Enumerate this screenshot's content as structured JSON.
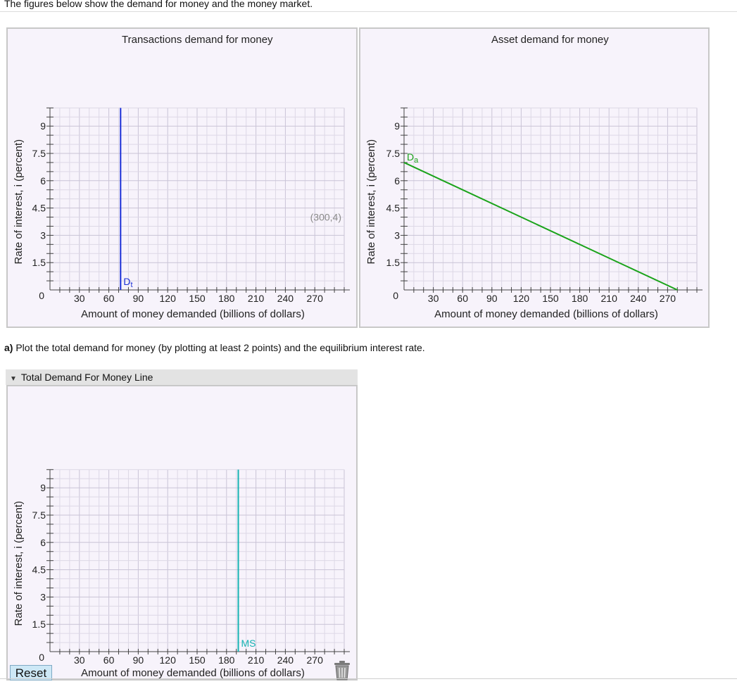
{
  "intro_text": "The figures below show the demand for money and the money market.",
  "question": {
    "prefix": "a)",
    "text": " Plot the total demand for money (by plotting at least 2 points) and the equilibrium interest rate."
  },
  "section": {
    "label": "Total Demand For Money Line"
  },
  "reset_label": "Reset",
  "icons": {
    "collapse": "caret-down-icon",
    "trash": "trash-can-icon"
  },
  "colors": {
    "dt_line": "#1a2fd6",
    "da_line": "#1aa31a",
    "ms_line": "#16b3b3",
    "panel_bg": "#f7f3fb"
  },
  "chart_data": [
    {
      "type": "line",
      "title": "Transactions demand for money",
      "xlabel": "Amount of money demanded (billions of dollars)",
      "ylabel": "Rate of interest, i (percent)",
      "xlim": [
        0,
        300
      ],
      "ylim": [
        0,
        10
      ],
      "x_ticks": [
        30,
        60,
        90,
        120,
        150,
        180,
        210,
        240,
        270
      ],
      "y_ticks": [
        1.5,
        3,
        4.5,
        6,
        7.5,
        9
      ],
      "origin_label": "0",
      "grid": true,
      "annotation": "(300,4)",
      "series": [
        {
          "name": "Dt",
          "points": [
            [
              72,
              0
            ],
            [
              72,
              10
            ]
          ],
          "color": "#1a2fd6"
        }
      ]
    },
    {
      "type": "line",
      "title": "Asset demand for money",
      "xlabel": "Amount of money demanded (billions of dollars)",
      "ylabel": "Rate of interest, i (percent)",
      "xlim": [
        0,
        300
      ],
      "ylim": [
        0,
        10
      ],
      "x_ticks": [
        30,
        60,
        90,
        120,
        150,
        180,
        210,
        240,
        270
      ],
      "y_ticks": [
        1.5,
        3,
        4.5,
        6,
        7.5,
        9
      ],
      "origin_label": "0",
      "grid": true,
      "series": [
        {
          "name": "Da",
          "points": [
            [
              0,
              7
            ],
            [
              280,
              0
            ]
          ],
          "color": "#1aa31a"
        }
      ]
    },
    {
      "type": "line",
      "title": "",
      "xlabel": "Amount of money demanded (billions of dollars)",
      "ylabel": "Rate of interest, i (percent)",
      "xlim": [
        0,
        300
      ],
      "ylim": [
        0,
        10
      ],
      "x_ticks": [
        30,
        60,
        90,
        120,
        150,
        180,
        210,
        240,
        270
      ],
      "y_ticks": [
        1.5,
        3,
        4.5,
        6,
        7.5,
        9
      ],
      "origin_label": "0",
      "grid": true,
      "series": [
        {
          "name": "MS",
          "points": [
            [
              192,
              0
            ],
            [
              192,
              10
            ]
          ],
          "color": "#16b3b3"
        }
      ]
    }
  ]
}
